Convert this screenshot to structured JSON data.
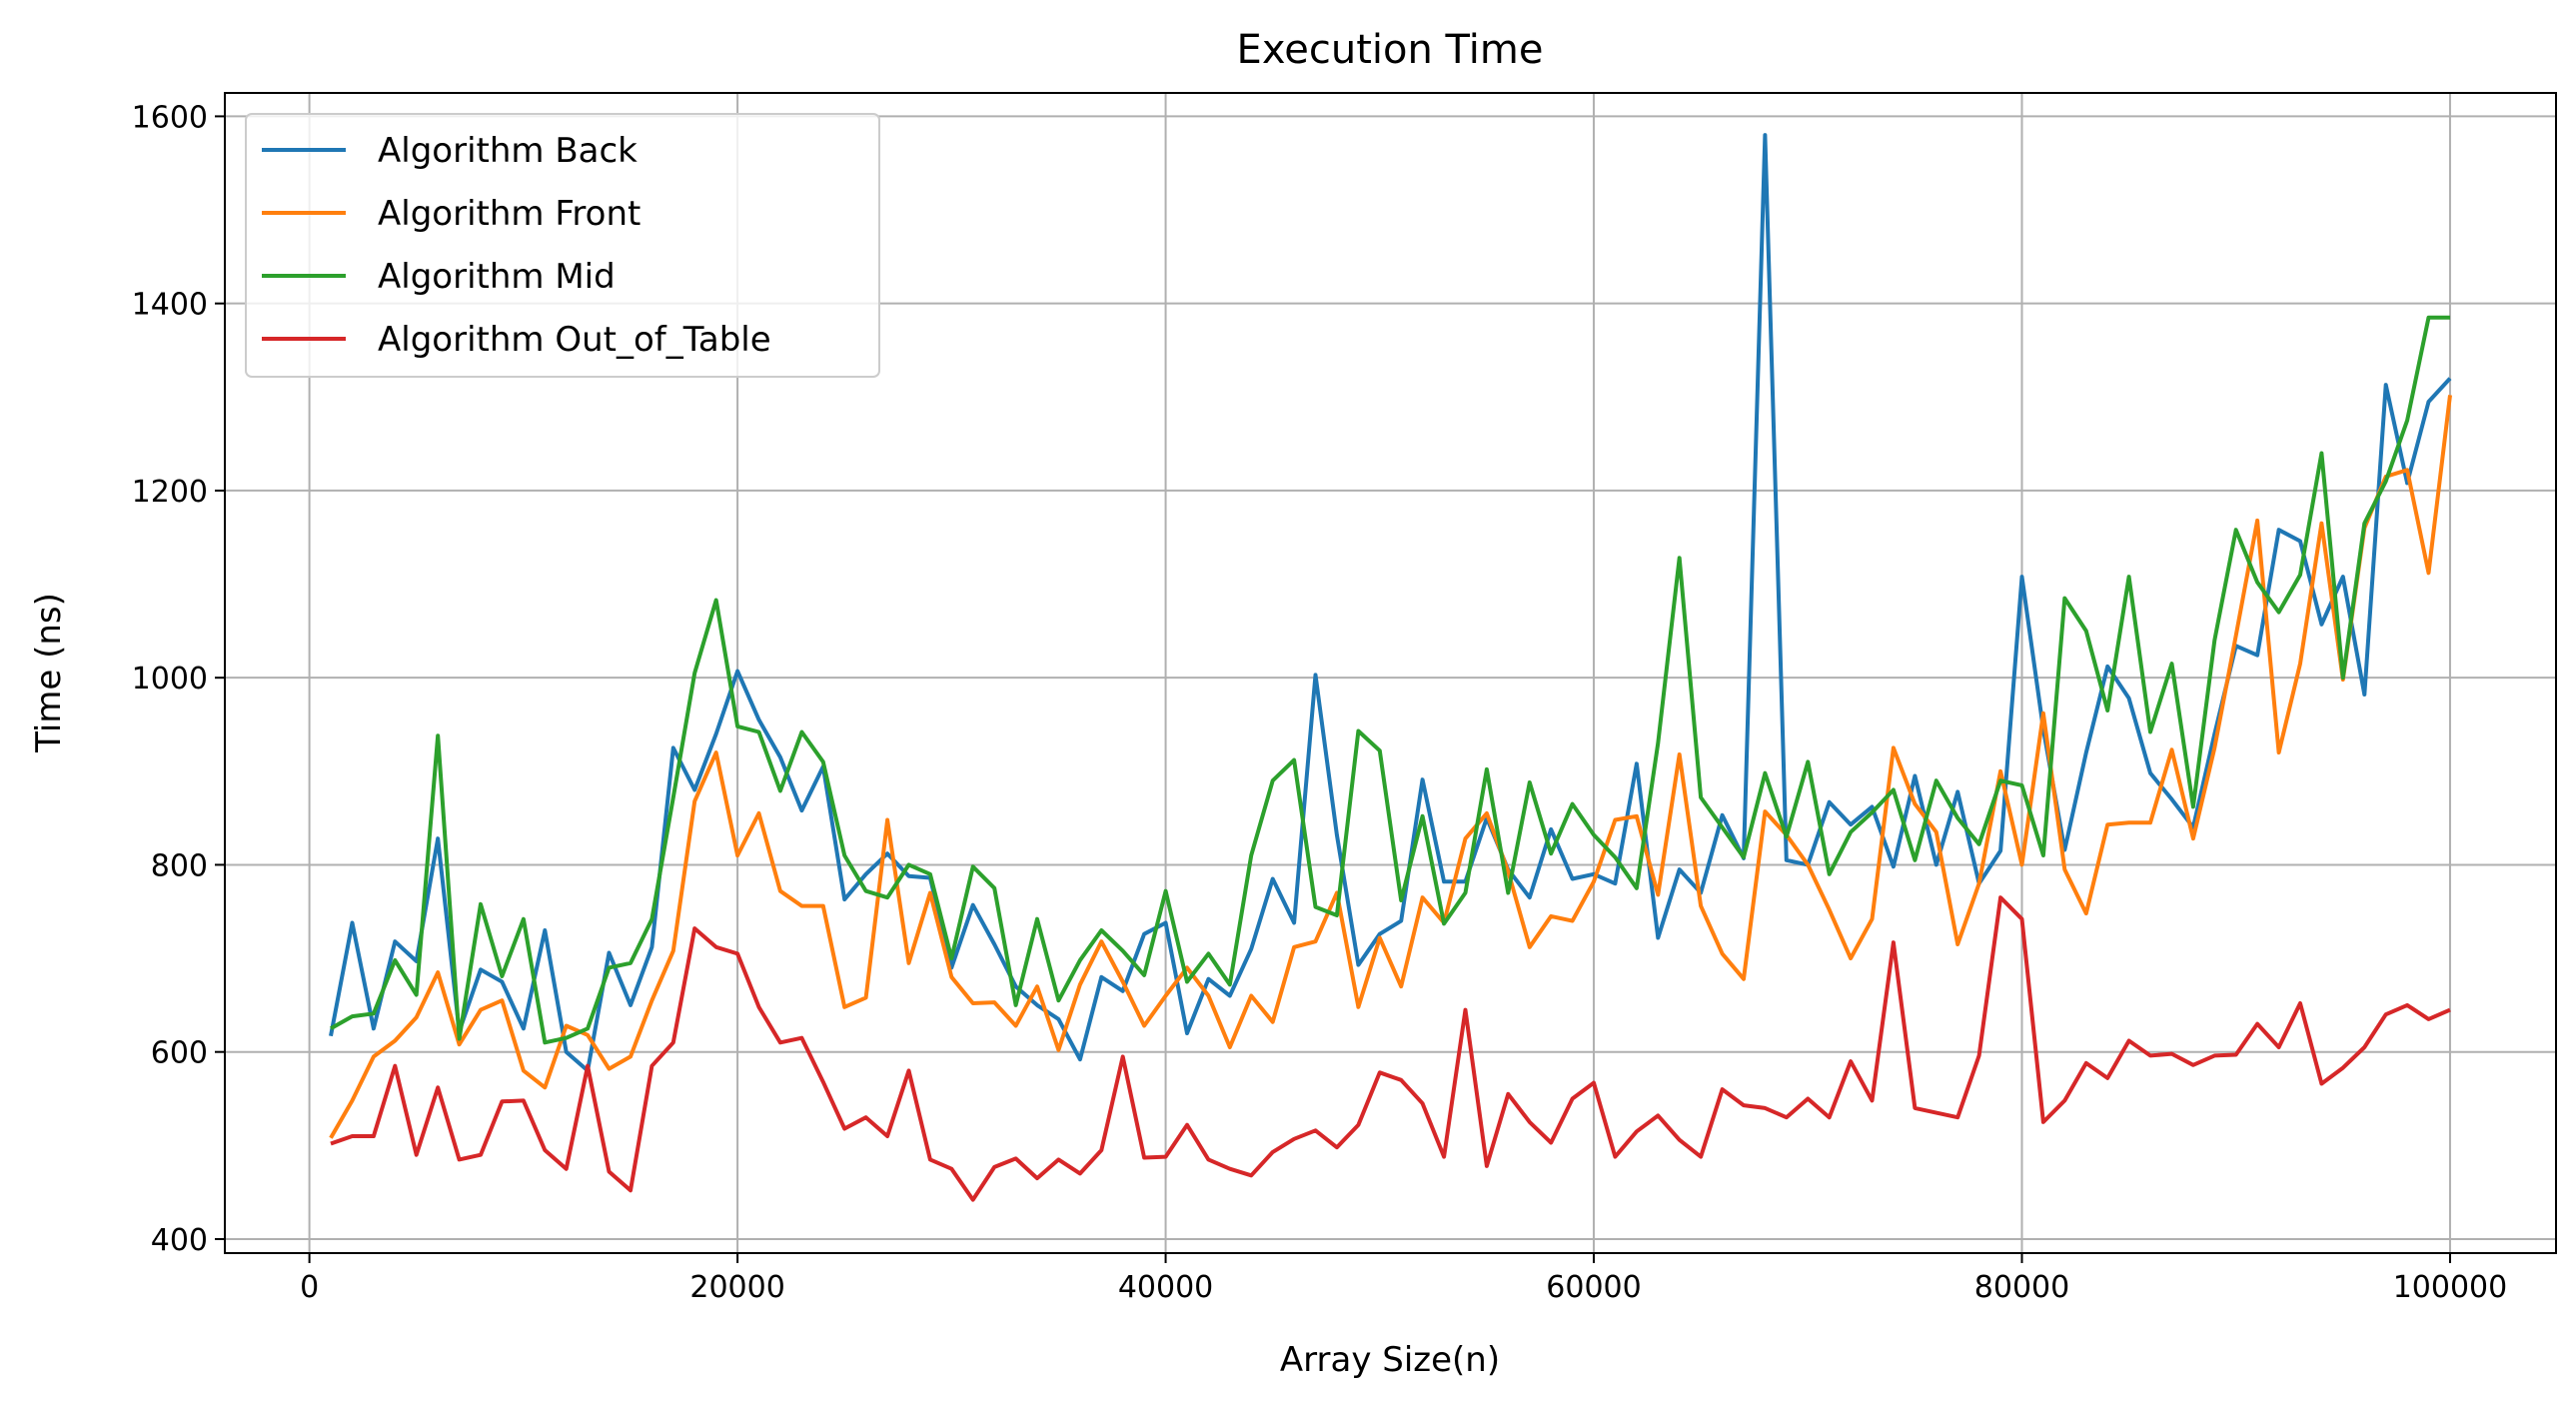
{
  "chart_data": {
    "type": "line",
    "title": "Execution Time",
    "xlabel": "Array Size(n)",
    "ylabel": "Time (ns)",
    "xlim": [
      -3950,
      104950
    ],
    "ylim": [
      385,
      1625
    ],
    "xticks": [
      0,
      20000,
      40000,
      60000,
      80000,
      100000
    ],
    "yticks": [
      400,
      600,
      800,
      1000,
      1200,
      1400,
      1600
    ],
    "grid": true,
    "legend_position": "upper-left",
    "x": [
      1000,
      2000,
      3000,
      4000,
      5000,
      6000,
      7000,
      8000,
      9000,
      10000,
      11000,
      12000,
      13000,
      14000,
      15000,
      16000,
      17000,
      18000,
      19000,
      20000,
      21000,
      22000,
      23000,
      24000,
      25000,
      26000,
      27000,
      28000,
      29000,
      30000,
      31000,
      32000,
      33000,
      34000,
      35000,
      36000,
      37000,
      38000,
      39000,
      40000,
      41000,
      42000,
      43000,
      44000,
      45000,
      46000,
      47000,
      48000,
      49000,
      50000,
      51000,
      52000,
      53000,
      54000,
      55000,
      56000,
      57000,
      58000,
      59000,
      60000,
      61000,
      62000,
      63000,
      64000,
      65000,
      66000,
      67000,
      68000,
      69000,
      70000,
      71000,
      72000,
      73000,
      74000,
      75000,
      76000,
      77000,
      78000,
      79000,
      80000,
      81000,
      82000,
      83000,
      84000,
      85000,
      86000,
      87000,
      88000,
      89000,
      90000,
      91000,
      92000,
      93000,
      94000,
      95000,
      96000,
      97000,
      98000,
      99000,
      100000
    ],
    "series": [
      {
        "name": "Algorithm Back",
        "color": "#1f77b4",
        "values": [
          617,
          738,
          625,
          718,
          697,
          828,
          622,
          688,
          675,
          625,
          730,
          600,
          580,
          706,
          650,
          712,
          925,
          880,
          940,
          1007,
          955,
          915,
          858,
          905,
          763,
          790,
          812,
          788,
          786,
          690,
          757,
          715,
          670,
          650,
          635,
          592,
          680,
          665,
          726,
          738,
          620,
          678,
          660,
          710,
          785,
          738,
          1003,
          832,
          693,
          726,
          740,
          891,
          782,
          782,
          850,
          795,
          765,
          838,
          785,
          790,
          780,
          908,
          722,
          795,
          770,
          853,
          807,
          1580,
          805,
          800,
          867,
          843,
          862,
          798,
          895,
          800,
          878,
          780,
          815,
          1108,
          945,
          816,
          920,
          1012,
          978,
          898,
          870,
          840,
          940,
          1034,
          1024,
          1158,
          1146,
          1057,
          1108,
          982,
          1313,
          1208,
          1295,
          1320
        ]
      },
      {
        "name": "Algorithm Front",
        "color": "#ff7f0e",
        "values": [
          508,
          548,
          595,
          612,
          637,
          685,
          608,
          645,
          655,
          580,
          562,
          628,
          618,
          582,
          595,
          655,
          708,
          868,
          920,
          810,
          855,
          772,
          756,
          756,
          648,
          658,
          848,
          695,
          770,
          680,
          652,
          653,
          628,
          670,
          602,
          672,
          718,
          675,
          628,
          660,
          690,
          660,
          605,
          660,
          632,
          712,
          718,
          770,
          648,
          722,
          670,
          765,
          738,
          828,
          855,
          793,
          712,
          745,
          740,
          782,
          848,
          852,
          768,
          918,
          756,
          705,
          678,
          857,
          832,
          800,
          752,
          700,
          742,
          925,
          865,
          835,
          715,
          780,
          900,
          800,
          962,
          795,
          748,
          843,
          845,
          845,
          923,
          828,
          925,
          1045,
          1168,
          920,
          1015,
          1165,
          998,
          1160,
          1215,
          1222,
          1112,
          1302
        ]
      },
      {
        "name": "Algorithm Mid",
        "color": "#2ca02c",
        "values": [
          625,
          638,
          641,
          698,
          661,
          938,
          614,
          758,
          681,
          742,
          610,
          615,
          625,
          690,
          695,
          742,
          872,
          1005,
          1083,
          948,
          942,
          879,
          942,
          910,
          810,
          772,
          765,
          800,
          790,
          700,
          798,
          775,
          650,
          742,
          655,
          698,
          730,
          708,
          682,
          772,
          675,
          705,
          672,
          810,
          890,
          912,
          755,
          746,
          943,
          922,
          762,
          852,
          737,
          770,
          902,
          770,
          888,
          812,
          865,
          832,
          808,
          775,
          930,
          1128,
          872,
          840,
          808,
          898,
          830,
          910,
          790,
          835,
          856,
          880,
          805,
          890,
          850,
          822,
          890,
          885,
          810,
          1085,
          1050,
          965,
          1108,
          942,
          1015,
          862,
          1040,
          1158,
          1102,
          1070,
          1110,
          1240,
          1000,
          1165,
          1210,
          1275,
          1385,
          1385
        ]
      },
      {
        "name": "Algorithm Out_of_Table",
        "color": "#d62728",
        "values": [
          502,
          510,
          510,
          585,
          490,
          562,
          485,
          490,
          547,
          548,
          495,
          475,
          585,
          472,
          452,
          585,
          610,
          732,
          712,
          705,
          648,
          610,
          615,
          568,
          518,
          530,
          510,
          580,
          485,
          475,
          442,
          477,
          486,
          465,
          485,
          470,
          495,
          595,
          487,
          488,
          522,
          485,
          475,
          468,
          493,
          507,
          516,
          498,
          522,
          578,
          570,
          545,
          488,
          645,
          478,
          555,
          525,
          503,
          550,
          567,
          488,
          515,
          532,
          506,
          488,
          560,
          543,
          540,
          530,
          550,
          530,
          590,
          548,
          717,
          540,
          535,
          530,
          596,
          765,
          742,
          525,
          548,
          588,
          572,
          612,
          596,
          598,
          586,
          596,
          597,
          630,
          605,
          652,
          566,
          583,
          605,
          640,
          650,
          635,
          645
        ]
      }
    ]
  }
}
